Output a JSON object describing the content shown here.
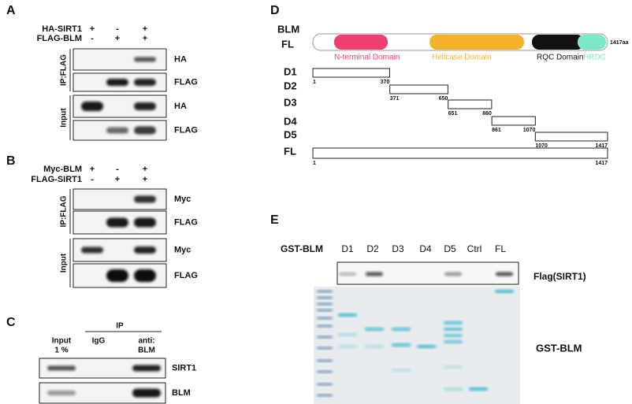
{
  "panels": {
    "A": {
      "label": "A",
      "rows": [
        {
          "name": "HA-SIRT1",
          "signs": [
            "+",
            "-",
            "+"
          ]
        },
        {
          "name": "FLAG-BLM",
          "signs": [
            "-",
            "+",
            "+"
          ]
        }
      ],
      "groups": [
        "IP:FLAG",
        "Input"
      ],
      "blots": [
        "HA",
        "FLAG",
        "HA",
        "FLAG"
      ]
    },
    "B": {
      "label": "B",
      "rows": [
        {
          "name": "Myc-BLM",
          "signs": [
            "+",
            "-",
            "+"
          ]
        },
        {
          "name": "FLAG-SIRT1",
          "signs": [
            "-",
            "+",
            "+"
          ]
        }
      ],
      "groups": [
        "IP:FLAG",
        "Input"
      ],
      "blots": [
        "Myc",
        "FLAG",
        "Myc",
        "FLAG"
      ]
    },
    "C": {
      "label": "C",
      "group": "IP",
      "columns": [
        [
          "Input",
          "1  %"
        ],
        [
          "IgG"
        ],
        [
          "anti:",
          "BLM"
        ]
      ],
      "blots": [
        "SIRT1",
        "BLM"
      ]
    },
    "D": {
      "label": "D",
      "protein": "BLM",
      "full": "FL",
      "length": "1417aa",
      "domains": [
        {
          "name": "N-terminal Domain",
          "color": "#ee3f6e"
        },
        {
          "name": "Helicase Domain",
          "color": "#f4b32a"
        },
        {
          "name": "RQC Domain",
          "color": "#111111"
        },
        {
          "name": "HRDC",
          "color": "#7de8c8"
        }
      ],
      "constructs": [
        {
          "name": "D1",
          "start": 1,
          "end": 370
        },
        {
          "name": "D2",
          "start": 371,
          "end": 650
        },
        {
          "name": "D3",
          "start": 651,
          "end": 860
        },
        {
          "name": "D4",
          "start": 861,
          "end": 1070
        },
        {
          "name": "D5",
          "start": 1070,
          "end": 1417
        },
        {
          "name": "FL",
          "start": 1,
          "end": 1417
        }
      ]
    },
    "E": {
      "label": "E",
      "row_label": "GST-BLM",
      "lanes": [
        "D1",
        "D2",
        "D3",
        "D4",
        "D5",
        "Ctrl",
        "FL"
      ],
      "blot_label": "Flag(SIRT1)",
      "gel_label": "GST-BLM"
    }
  }
}
